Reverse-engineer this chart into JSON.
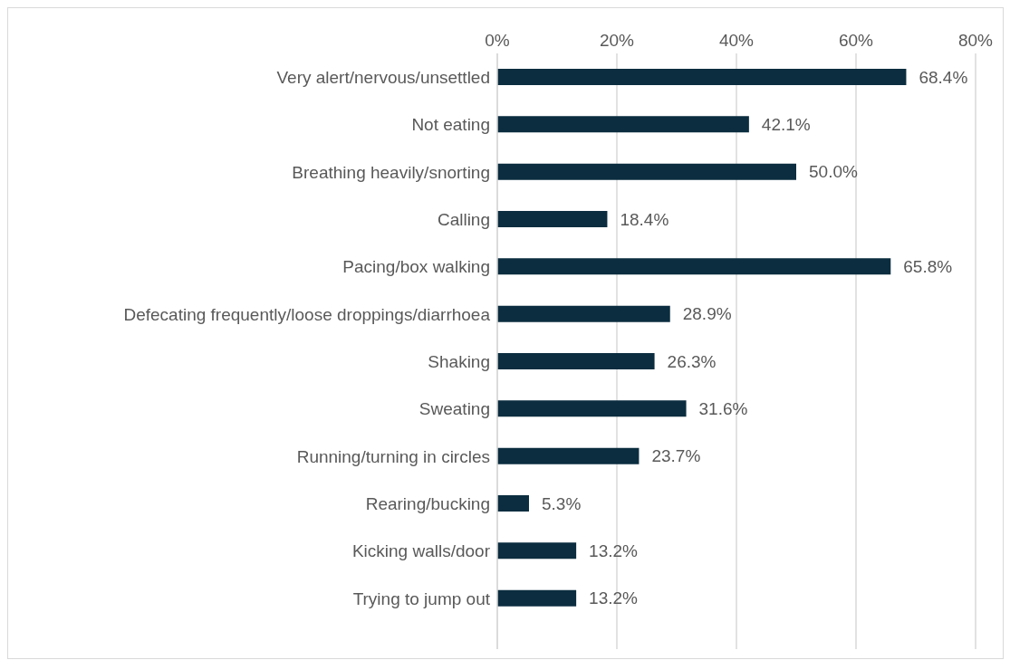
{
  "chart_data": {
    "type": "bar",
    "orientation": "horizontal",
    "categories": [
      "Very alert/nervous/unsettled",
      "Not eating",
      "Breathing heavily/snorting",
      "Calling",
      "Pacing/box walking",
      "Defecating frequently/loose droppings/diarrhoea",
      "Shaking",
      "Sweating",
      "Running/turning in circles",
      "Rearing/bucking",
      "Kicking walls/door",
      "Trying to jump out"
    ],
    "values": [
      68.4,
      42.1,
      50.0,
      18.4,
      65.8,
      28.9,
      26.3,
      31.6,
      23.7,
      5.3,
      13.2,
      13.2
    ],
    "value_labels": [
      "68.4%",
      "42.1%",
      "50.0%",
      "18.4%",
      "65.8%",
      "28.9%",
      "26.3%",
      "31.6%",
      "23.7%",
      "5.3%",
      "13.2%",
      "13.2%"
    ],
    "color": "#0b2d3f",
    "xlim": [
      0,
      80
    ],
    "xticks": [
      {
        "value": 0,
        "label": "0%"
      },
      {
        "value": 20,
        "label": "20%"
      },
      {
        "value": 40,
        "label": "40%"
      },
      {
        "value": 60,
        "label": "60%"
      },
      {
        "value": 80,
        "label": "80%"
      }
    ],
    "grid": "x"
  }
}
